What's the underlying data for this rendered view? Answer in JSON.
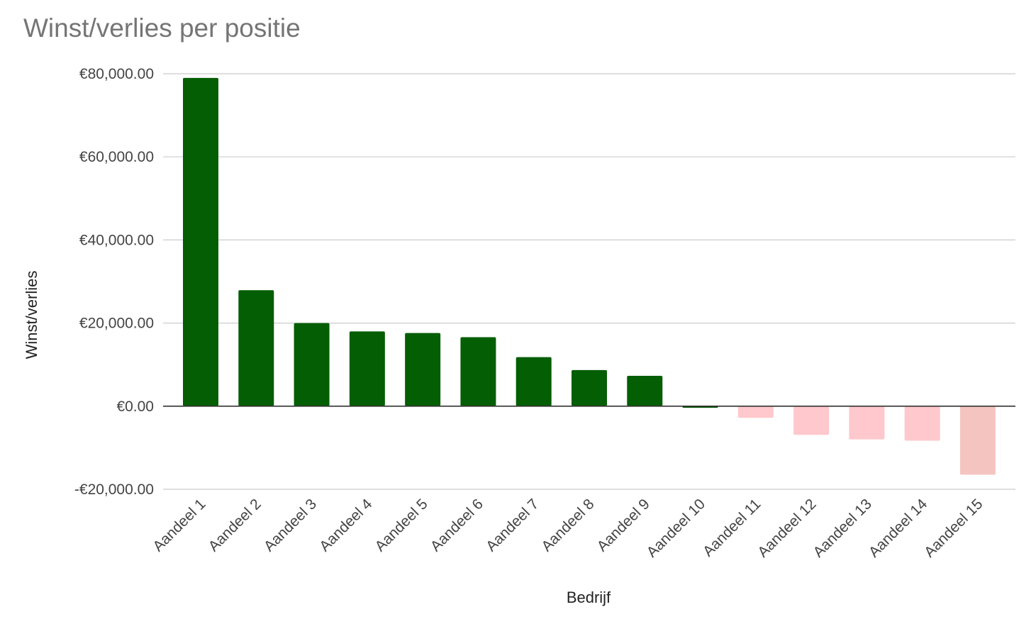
{
  "chart_data": {
    "type": "bar",
    "title": "Winst/verlies per positie",
    "xlabel": "Bedrijf",
    "ylabel": "Winst/verlies",
    "ylim": [
      -20000,
      80000
    ],
    "yticks": [
      80000,
      60000,
      40000,
      20000,
      0,
      -20000
    ],
    "ytick_labels": [
      "€80,000.00",
      "€60,000.00",
      "€40,000.00",
      "€20,000.00",
      "€0.00",
      "-€20,000.00"
    ],
    "grid": true,
    "legend": "none",
    "categories": [
      "Aandeel 1",
      "Aandeel 2",
      "Aandeel 3",
      "Aandeel 4",
      "Aandeel 5",
      "Aandeel 6",
      "Aandeel 7",
      "Aandeel 8",
      "Aandeel 9",
      "Aandeel 10",
      "Aandeel 11",
      "Aandeel 12",
      "Aandeel 13",
      "Aandeel 14",
      "Aandeel 15"
    ],
    "values": [
      79000,
      27900,
      20000,
      18000,
      17600,
      16600,
      11800,
      8700,
      7300,
      -400,
      -2800,
      -6900,
      -8000,
      -8300,
      -16500
    ],
    "colors": [
      "#045e04",
      "#045e04",
      "#045e04",
      "#045e04",
      "#045e04",
      "#045e04",
      "#045e04",
      "#045e04",
      "#045e04",
      "#045e04",
      "#fec8cc",
      "#fec8cc",
      "#fec8cc",
      "#fec8cc",
      "#f4c5c0"
    ]
  }
}
